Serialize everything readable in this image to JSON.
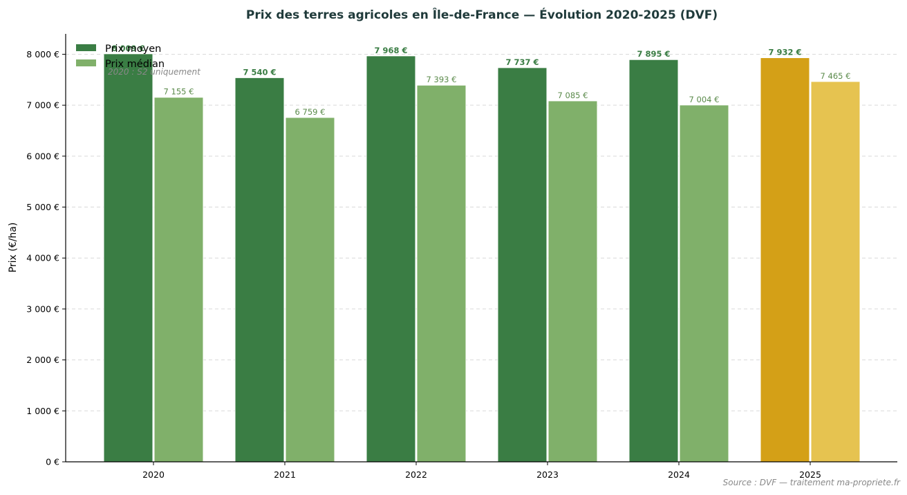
{
  "chart_data": {
    "type": "bar",
    "title": "Prix des terres agricoles en Île-de-France — Évolution 2020-2025 (DVF)",
    "ylabel": "Prix (€/ha)",
    "categories": [
      "2020",
      "2021",
      "2022",
      "2023",
      "2024",
      "2025"
    ],
    "ylim": [
      0,
      8400
    ],
    "yticks": [
      0,
      1000,
      2000,
      3000,
      4000,
      5000,
      6000,
      7000,
      8000
    ],
    "ytick_labels": [
      "0 €",
      "1 000 €",
      "2 000 €",
      "3 000 €",
      "4 000 €",
      "5 000 €",
      "6 000 €",
      "7 000 €",
      "8 000 €"
    ],
    "grid": "horizontal dashed",
    "legend_position": "top-left",
    "series": [
      {
        "name": "Prix moyen",
        "values": [
          8009,
          7540,
          7968,
          7737,
          7895,
          7932
        ],
        "labels": [
          "8 009 €",
          "7 540 €",
          "7 968 €",
          "7 737 €",
          "7 895 €",
          "7 932 €"
        ],
        "color": "#3a7d44",
        "highlight_color": "#d4a017"
      },
      {
        "name": "Prix médian",
        "values": [
          7155,
          6759,
          7393,
          7085,
          7004,
          7465
        ],
        "labels": [
          "7 155 €",
          "6 759 €",
          "7 393 €",
          "7 085 €",
          "7 004 €",
          "7 465 €"
        ],
        "color": "#80b06a",
        "highlight_color": "#e6c350"
      }
    ],
    "highlight_category": "2025",
    "annotations": {
      "note": "2020 : S2 uniquement",
      "source": "Source : DVF — traitement ma-propriete.fr"
    }
  }
}
